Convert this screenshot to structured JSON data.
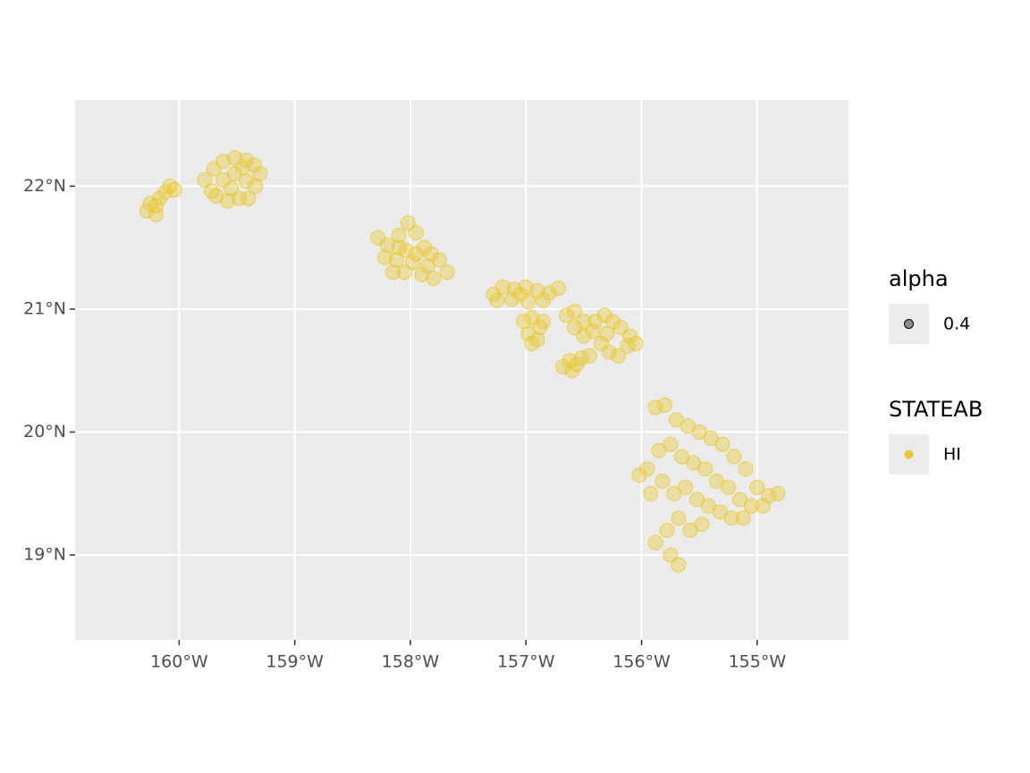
{
  "chart_data": {
    "type": "scatter",
    "xlim": [
      -160.9,
      -154.21
    ],
    "ylim": [
      18.31,
      22.7
    ],
    "xticks": [
      {
        "value": -160,
        "label": "160°W"
      },
      {
        "value": -159,
        "label": "159°W"
      },
      {
        "value": -158,
        "label": "158°W"
      },
      {
        "value": -157,
        "label": "157°W"
      },
      {
        "value": -156,
        "label": "156°W"
      },
      {
        "value": -155,
        "label": "155°W"
      }
    ],
    "yticks": [
      {
        "value": 19,
        "label": "19°N"
      },
      {
        "value": 20,
        "label": "20°N"
      },
      {
        "value": 21,
        "label": "21°N"
      },
      {
        "value": 22,
        "label": "22°N"
      }
    ],
    "grid": true,
    "alpha_legend": {
      "title": "alpha",
      "values": [
        0.4
      ]
    },
    "legend_title": "STATEAB",
    "series": [
      {
        "name": "HI",
        "color": "#e8c832",
        "x": [
          -160.28,
          -160.25,
          -160.2,
          -160.17,
          -160.12,
          -160.08,
          -160.04,
          -160.2,
          -159.78,
          -159.7,
          -159.62,
          -159.52,
          -159.42,
          -159.35,
          -159.3,
          -159.72,
          -159.62,
          -159.52,
          -159.42,
          -159.34,
          -159.68,
          -159.58,
          -159.48,
          -159.4,
          -159.55,
          -159.45,
          -158.28,
          -158.2,
          -158.1,
          -158.02,
          -157.95,
          -157.88,
          -157.82,
          -157.75,
          -157.68,
          -158.22,
          -158.12,
          -158.04,
          -157.95,
          -157.85,
          -158.15,
          -158.05,
          -157.98,
          -157.9,
          -157.8,
          -158.1,
          -157.28,
          -157.2,
          -157.1,
          -157.0,
          -156.9,
          -156.8,
          -156.72,
          -157.25,
          -157.12,
          -156.98,
          -156.85,
          -157.05,
          -157.02,
          -156.95,
          -156.88,
          -156.98,
          -156.9,
          -156.95,
          -156.85,
          -156.68,
          -156.62,
          -156.56,
          -156.6,
          -156.52,
          -156.65,
          -156.58,
          -156.5,
          -156.42,
          -156.58,
          -156.5,
          -156.4,
          -156.32,
          -156.25,
          -156.18,
          -156.1,
          -156.05,
          -156.35,
          -156.28,
          -156.2,
          -156.12,
          -156.45,
          -156.3,
          -155.88,
          -155.8,
          -155.7,
          -155.6,
          -155.5,
          -155.4,
          -155.3,
          -155.2,
          -155.1,
          -155.0,
          -154.9,
          -154.82,
          -155.95,
          -155.85,
          -155.75,
          -155.65,
          -155.55,
          -155.45,
          -155.35,
          -155.25,
          -155.15,
          -155.05,
          -154.95,
          -156.02,
          -155.92,
          -155.82,
          -155.72,
          -155.62,
          -155.52,
          -155.42,
          -155.32,
          -155.22,
          -155.12,
          -155.88,
          -155.78,
          -155.68,
          -155.58,
          -155.48,
          -155.75,
          -155.68
        ],
        "y": [
          21.8,
          21.86,
          21.77,
          21.9,
          21.95,
          22.0,
          21.97,
          21.84,
          22.05,
          22.14,
          22.2,
          22.23,
          22.21,
          22.17,
          22.1,
          21.96,
          22.05,
          22.1,
          22.04,
          22.0,
          21.92,
          21.88,
          21.9,
          21.9,
          21.98,
          22.15,
          21.58,
          21.52,
          21.6,
          21.7,
          21.62,
          21.5,
          21.45,
          21.4,
          21.3,
          21.42,
          21.4,
          21.48,
          21.45,
          21.35,
          21.3,
          21.3,
          21.38,
          21.28,
          21.25,
          21.5,
          21.12,
          21.18,
          21.16,
          21.18,
          21.15,
          21.13,
          21.17,
          21.07,
          21.08,
          21.06,
          21.07,
          21.12,
          20.9,
          20.93,
          20.85,
          20.8,
          20.75,
          20.72,
          20.9,
          20.53,
          20.58,
          20.55,
          20.5,
          20.6,
          20.95,
          20.98,
          20.9,
          20.82,
          20.85,
          20.78,
          20.9,
          20.95,
          20.9,
          20.85,
          20.78,
          20.72,
          20.72,
          20.65,
          20.62,
          20.7,
          20.62,
          20.8,
          20.2,
          20.22,
          20.1,
          20.05,
          20.0,
          19.95,
          19.9,
          19.8,
          19.7,
          19.55,
          19.48,
          19.5,
          19.7,
          19.85,
          19.9,
          19.8,
          19.75,
          19.7,
          19.6,
          19.55,
          19.45,
          19.4,
          19.4,
          19.65,
          19.5,
          19.6,
          19.5,
          19.55,
          19.45,
          19.4,
          19.35,
          19.3,
          19.3,
          19.1,
          19.2,
          19.3,
          19.2,
          19.25,
          19.0,
          18.92
        ]
      }
    ]
  }
}
